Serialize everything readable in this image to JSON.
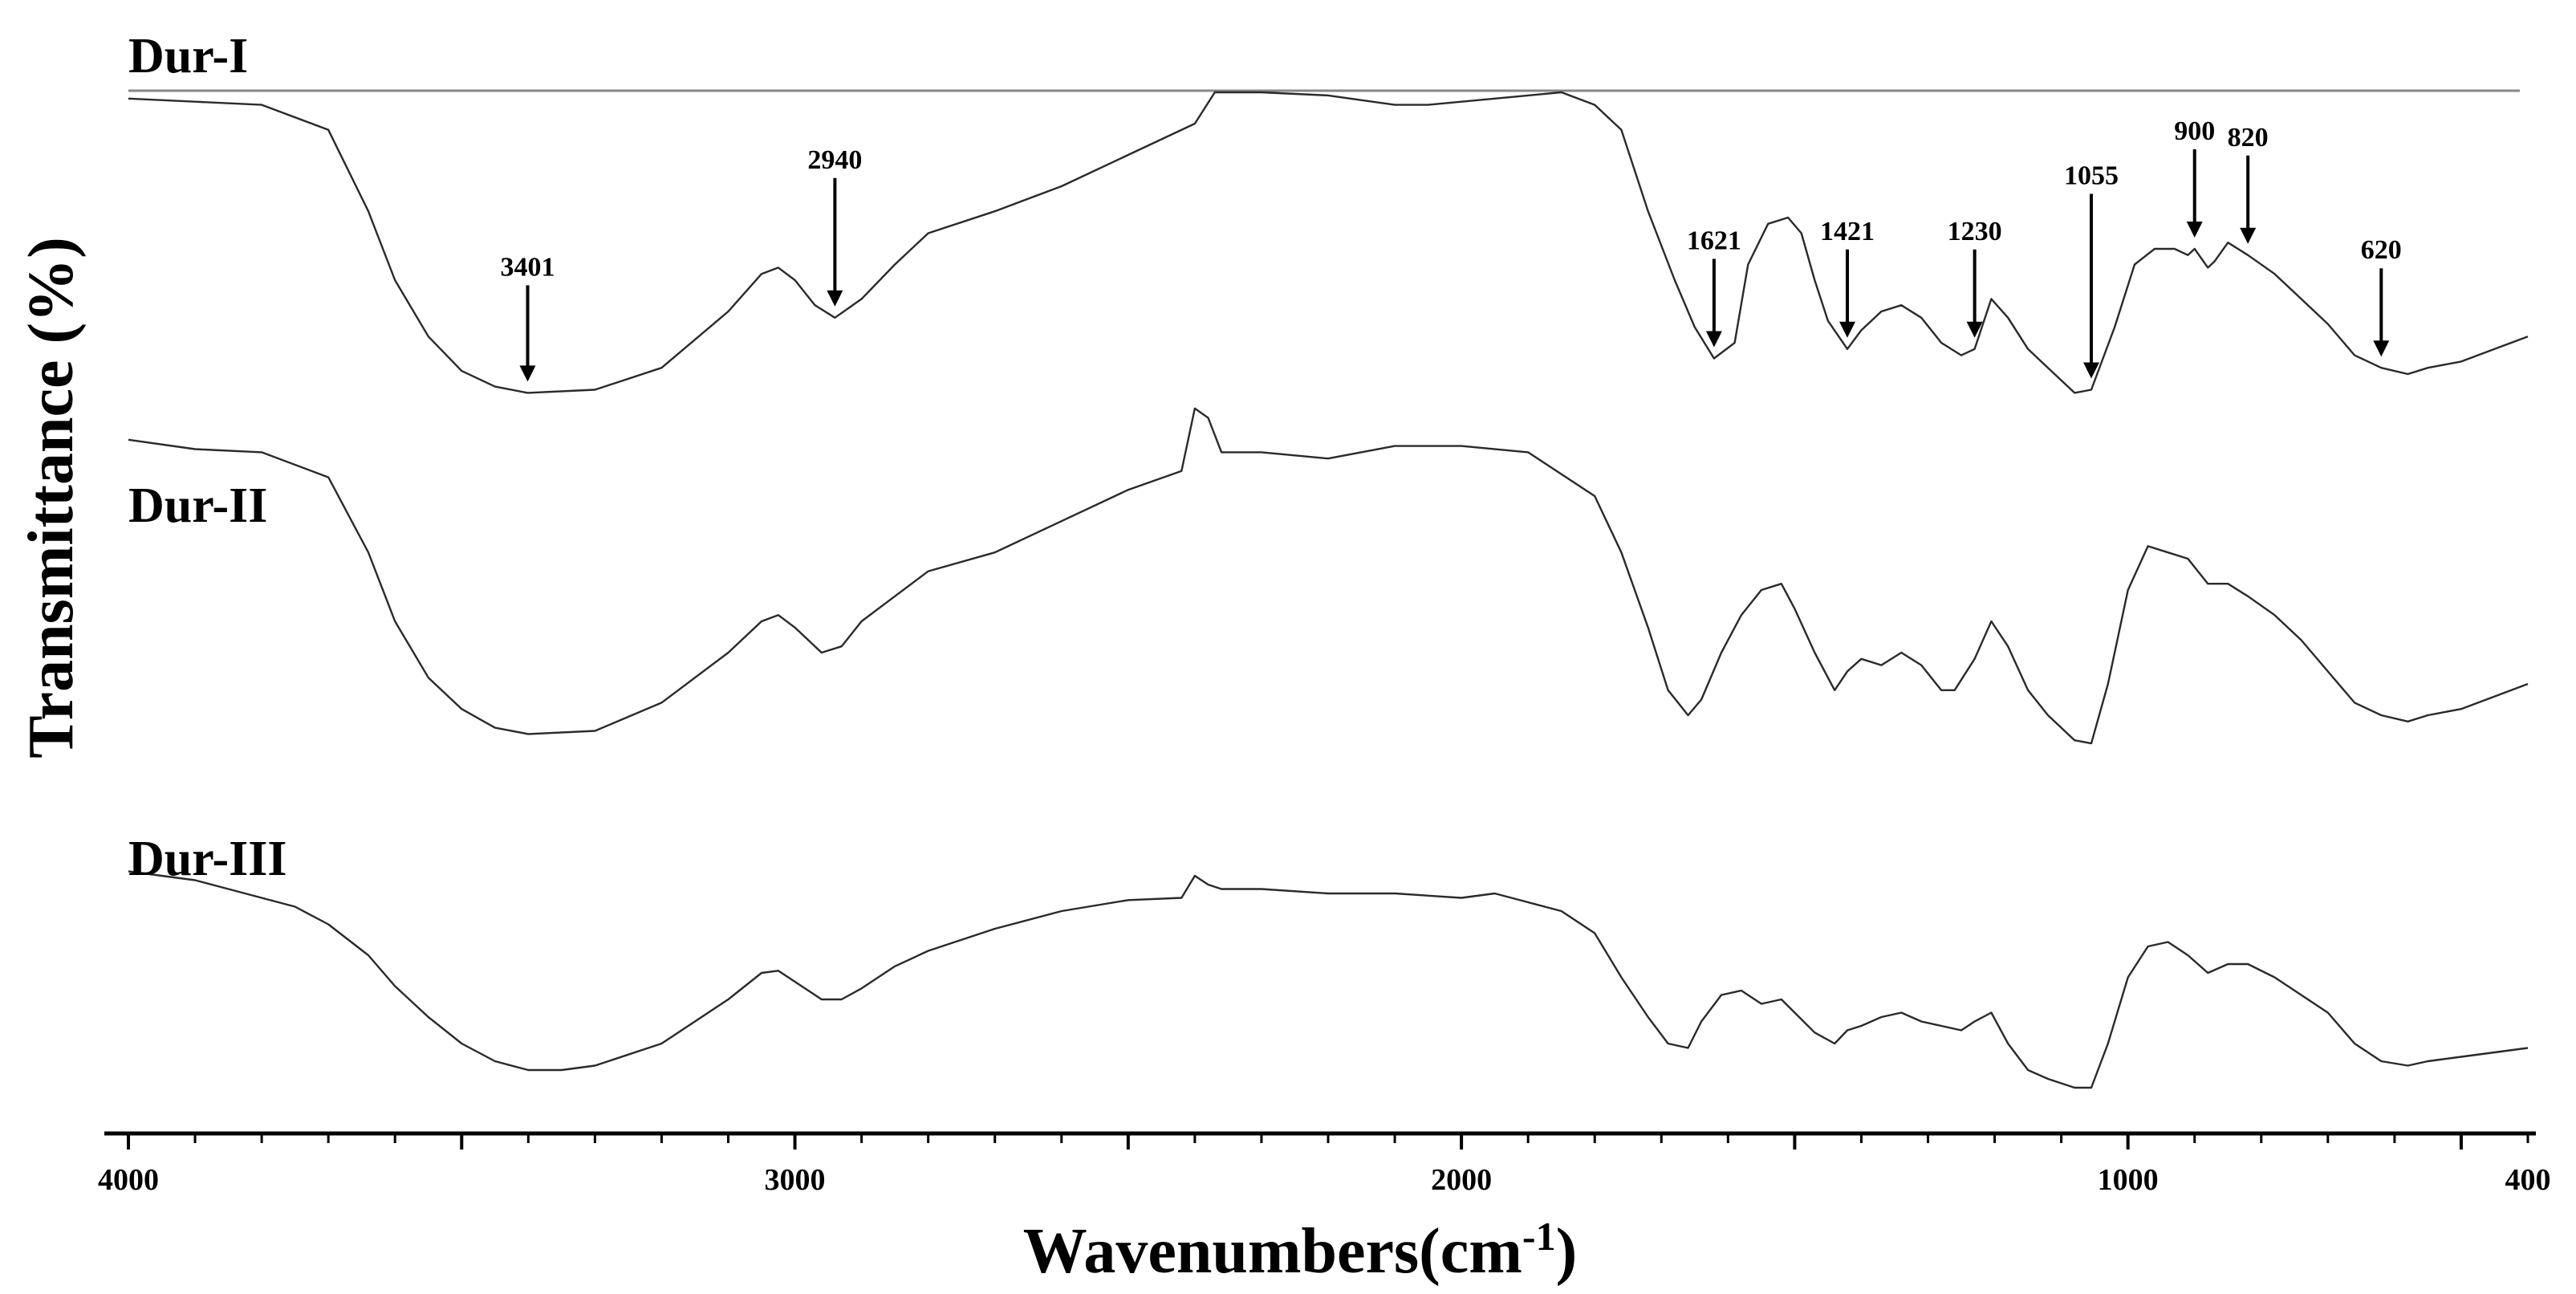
{
  "chart_data": {
    "type": "line",
    "title": "",
    "xlabel": "Wavenumbers(cm-1)",
    "xlabel_main": "Wavenumbers(cm",
    "xlabel_sup": "-1",
    "xlabel_end": ")",
    "ylabel": "Transmittance (%)",
    "xlim": [
      4000,
      400
    ],
    "x_reversed": true,
    "x_ticks": [
      {
        "value": 4000,
        "label": "4000"
      },
      {
        "value": 3000,
        "label": "3000"
      },
      {
        "value": 2000,
        "label": "2000"
      },
      {
        "value": 1000,
        "label": "1000"
      },
      {
        "value": 400,
        "label": "400"
      }
    ],
    "y_ticks_shown": false,
    "grid": false,
    "series": [
      {
        "name": "Dur-I",
        "points": [
          [
            4000,
            2
          ],
          [
            3900,
            3
          ],
          [
            3800,
            4
          ],
          [
            3700,
            12
          ],
          [
            3640,
            38
          ],
          [
            3600,
            60
          ],
          [
            3550,
            78
          ],
          [
            3500,
            89
          ],
          [
            3450,
            94
          ],
          [
            3401,
            96
          ],
          [
            3300,
            95
          ],
          [
            3200,
            88
          ],
          [
            3100,
            70
          ],
          [
            3050,
            58
          ],
          [
            3025,
            56
          ],
          [
            3000,
            60
          ],
          [
            2970,
            68
          ],
          [
            2940,
            72
          ],
          [
            2900,
            66
          ],
          [
            2850,
            55
          ],
          [
            2800,
            45
          ],
          [
            2700,
            38
          ],
          [
            2600,
            30
          ],
          [
            2500,
            20
          ],
          [
            2400,
            10
          ],
          [
            2370,
            0
          ],
          [
            2300,
            0
          ],
          [
            2200,
            1
          ],
          [
            2100,
            4
          ],
          [
            2050,
            4
          ],
          [
            2000,
            3
          ],
          [
            1900,
            1
          ],
          [
            1850,
            0
          ],
          [
            1800,
            4
          ],
          [
            1760,
            12
          ],
          [
            1720,
            38
          ],
          [
            1680,
            60
          ],
          [
            1650,
            75
          ],
          [
            1621,
            85
          ],
          [
            1590,
            80
          ],
          [
            1570,
            55
          ],
          [
            1540,
            42
          ],
          [
            1510,
            40
          ],
          [
            1490,
            45
          ],
          [
            1470,
            60
          ],
          [
            1450,
            73
          ],
          [
            1421,
            82
          ],
          [
            1400,
            76
          ],
          [
            1370,
            70
          ],
          [
            1340,
            68
          ],
          [
            1310,
            72
          ],
          [
            1280,
            80
          ],
          [
            1250,
            84
          ],
          [
            1230,
            82
          ],
          [
            1205,
            66
          ],
          [
            1180,
            72
          ],
          [
            1150,
            82
          ],
          [
            1120,
            88
          ],
          [
            1080,
            96
          ],
          [
            1055,
            95
          ],
          [
            1020,
            75
          ],
          [
            990,
            55
          ],
          [
            960,
            50
          ],
          [
            930,
            50
          ],
          [
            910,
            52
          ],
          [
            900,
            50
          ],
          [
            880,
            56
          ],
          [
            870,
            54
          ],
          [
            850,
            48
          ],
          [
            820,
            52
          ],
          [
            780,
            58
          ],
          [
            740,
            66
          ],
          [
            700,
            74
          ],
          [
            660,
            84
          ],
          [
            620,
            88
          ],
          [
            580,
            90
          ],
          [
            550,
            88
          ],
          [
            500,
            86
          ],
          [
            450,
            82
          ],
          [
            400,
            78
          ]
        ]
      },
      {
        "name": "Dur-II",
        "points": [
          [
            4000,
            2
          ],
          [
            3900,
            5
          ],
          [
            3800,
            6
          ],
          [
            3700,
            14
          ],
          [
            3640,
            38
          ],
          [
            3600,
            60
          ],
          [
            3550,
            78
          ],
          [
            3500,
            88
          ],
          [
            3450,
            94
          ],
          [
            3400,
            96
          ],
          [
            3300,
            95
          ],
          [
            3200,
            86
          ],
          [
            3100,
            70
          ],
          [
            3050,
            60
          ],
          [
            3025,
            58
          ],
          [
            3000,
            62
          ],
          [
            2960,
            70
          ],
          [
            2930,
            68
          ],
          [
            2900,
            60
          ],
          [
            2850,
            52
          ],
          [
            2800,
            44
          ],
          [
            2700,
            38
          ],
          [
            2600,
            28
          ],
          [
            2500,
            18
          ],
          [
            2420,
            12
          ],
          [
            2400,
            -8
          ],
          [
            2380,
            -5
          ],
          [
            2360,
            6
          ],
          [
            2300,
            6
          ],
          [
            2200,
            8
          ],
          [
            2100,
            4
          ],
          [
            2000,
            4
          ],
          [
            1900,
            6
          ],
          [
            1800,
            20
          ],
          [
            1760,
            38
          ],
          [
            1720,
            62
          ],
          [
            1690,
            82
          ],
          [
            1660,
            90
          ],
          [
            1640,
            85
          ],
          [
            1610,
            70
          ],
          [
            1580,
            58
          ],
          [
            1550,
            50
          ],
          [
            1520,
            48
          ],
          [
            1500,
            56
          ],
          [
            1470,
            70
          ],
          [
            1440,
            82
          ],
          [
            1421,
            76
          ],
          [
            1400,
            72
          ],
          [
            1370,
            74
          ],
          [
            1340,
            70
          ],
          [
            1310,
            74
          ],
          [
            1280,
            82
          ],
          [
            1260,
            82
          ],
          [
            1230,
            72
          ],
          [
            1205,
            60
          ],
          [
            1180,
            68
          ],
          [
            1150,
            82
          ],
          [
            1120,
            90
          ],
          [
            1100,
            94
          ],
          [
            1080,
            98
          ],
          [
            1055,
            99
          ],
          [
            1030,
            80
          ],
          [
            1000,
            50
          ],
          [
            970,
            36
          ],
          [
            940,
            38
          ],
          [
            910,
            40
          ],
          [
            880,
            48
          ],
          [
            850,
            48
          ],
          [
            820,
            52
          ],
          [
            780,
            58
          ],
          [
            740,
            66
          ],
          [
            700,
            76
          ],
          [
            660,
            86
          ],
          [
            620,
            90
          ],
          [
            580,
            92
          ],
          [
            550,
            90
          ],
          [
            500,
            88
          ],
          [
            450,
            84
          ],
          [
            400,
            80
          ]
        ]
      },
      {
        "name": "Dur-III",
        "points": [
          [
            4000,
            2
          ],
          [
            3950,
            4
          ],
          [
            3900,
            6
          ],
          [
            3850,
            10
          ],
          [
            3800,
            14
          ],
          [
            3750,
            18
          ],
          [
            3700,
            26
          ],
          [
            3640,
            40
          ],
          [
            3600,
            54
          ],
          [
            3550,
            68
          ],
          [
            3500,
            80
          ],
          [
            3450,
            88
          ],
          [
            3400,
            92
          ],
          [
            3350,
            92
          ],
          [
            3300,
            90
          ],
          [
            3200,
            80
          ],
          [
            3100,
            60
          ],
          [
            3050,
            48
          ],
          [
            3025,
            47
          ],
          [
            3000,
            52
          ],
          [
            2960,
            60
          ],
          [
            2930,
            60
          ],
          [
            2900,
            55
          ],
          [
            2850,
            45
          ],
          [
            2800,
            38
          ],
          [
            2700,
            28
          ],
          [
            2600,
            20
          ],
          [
            2500,
            15
          ],
          [
            2420,
            14
          ],
          [
            2400,
            4
          ],
          [
            2380,
            8
          ],
          [
            2360,
            10
          ],
          [
            2300,
            10
          ],
          [
            2200,
            12
          ],
          [
            2100,
            12
          ],
          [
            2000,
            14
          ],
          [
            1950,
            12
          ],
          [
            1900,
            16
          ],
          [
            1850,
            20
          ],
          [
            1800,
            30
          ],
          [
            1760,
            50
          ],
          [
            1720,
            68
          ],
          [
            1690,
            80
          ],
          [
            1660,
            82
          ],
          [
            1640,
            70
          ],
          [
            1610,
            58
          ],
          [
            1580,
            56
          ],
          [
            1550,
            62
          ],
          [
            1520,
            60
          ],
          [
            1500,
            66
          ],
          [
            1470,
            75
          ],
          [
            1440,
            80
          ],
          [
            1421,
            74
          ],
          [
            1400,
            72
          ],
          [
            1370,
            68
          ],
          [
            1340,
            66
          ],
          [
            1310,
            70
          ],
          [
            1280,
            72
          ],
          [
            1250,
            74
          ],
          [
            1230,
            70
          ],
          [
            1205,
            66
          ],
          [
            1180,
            80
          ],
          [
            1150,
            92
          ],
          [
            1120,
            96
          ],
          [
            1100,
            98
          ],
          [
            1080,
            100
          ],
          [
            1055,
            100
          ],
          [
            1030,
            80
          ],
          [
            1000,
            50
          ],
          [
            970,
            36
          ],
          [
            940,
            34
          ],
          [
            910,
            40
          ],
          [
            880,
            48
          ],
          [
            850,
            44
          ],
          [
            820,
            44
          ],
          [
            780,
            50
          ],
          [
            740,
            58
          ],
          [
            700,
            66
          ],
          [
            660,
            80
          ],
          [
            620,
            88
          ],
          [
            580,
            90
          ],
          [
            550,
            88
          ],
          [
            500,
            86
          ],
          [
            450,
            84
          ],
          [
            400,
            82
          ]
        ]
      }
    ],
    "annotations": [
      {
        "series": "Dur-I",
        "x": 3401,
        "label": "3401"
      },
      {
        "series": "Dur-I",
        "x": 2940,
        "label": "2940"
      },
      {
        "series": "Dur-I",
        "x": 1621,
        "label": "1621"
      },
      {
        "series": "Dur-I",
        "x": 1421,
        "label": "1421"
      },
      {
        "series": "Dur-I",
        "x": 1230,
        "label": "1230"
      },
      {
        "series": "Dur-I",
        "x": 1055,
        "label": "1055"
      },
      {
        "series": "Dur-I",
        "x": 900,
        "label": "900"
      },
      {
        "series": "Dur-I",
        "x": 820,
        "label": "820"
      },
      {
        "series": "Dur-I",
        "x": 620,
        "label": "620"
      }
    ]
  }
}
